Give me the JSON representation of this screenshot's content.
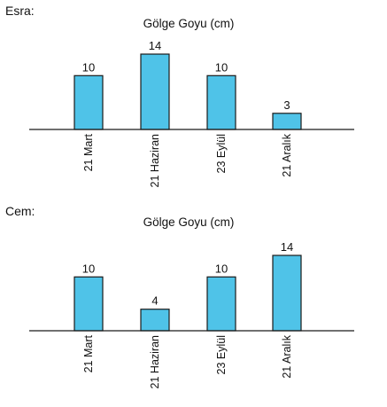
{
  "chart_data": [
    {
      "type": "bar",
      "label": "Esra:",
      "title": "Gölge Goyu (cm)",
      "categories": [
        "21 Mart",
        "21 Haziran",
        "23 Eylül",
        "21 Aralık"
      ],
      "values": [
        10,
        14,
        10,
        3
      ],
      "ylim": [
        0,
        14
      ],
      "grid": false,
      "bar_color": "#4fc3e8",
      "edge_color": "#1a1a1a"
    },
    {
      "type": "bar",
      "label": "Cem:",
      "title": "Gölge Goyu (cm)",
      "categories": [
        "21 Mart",
        "21 Haziran",
        "23 Eylül",
        "21 Aralık"
      ],
      "values": [
        10,
        4,
        10,
        14
      ],
      "ylim": [
        0,
        14
      ],
      "grid": false,
      "bar_color": "#4fc3e8",
      "edge_color": "#1a1a1a"
    }
  ]
}
